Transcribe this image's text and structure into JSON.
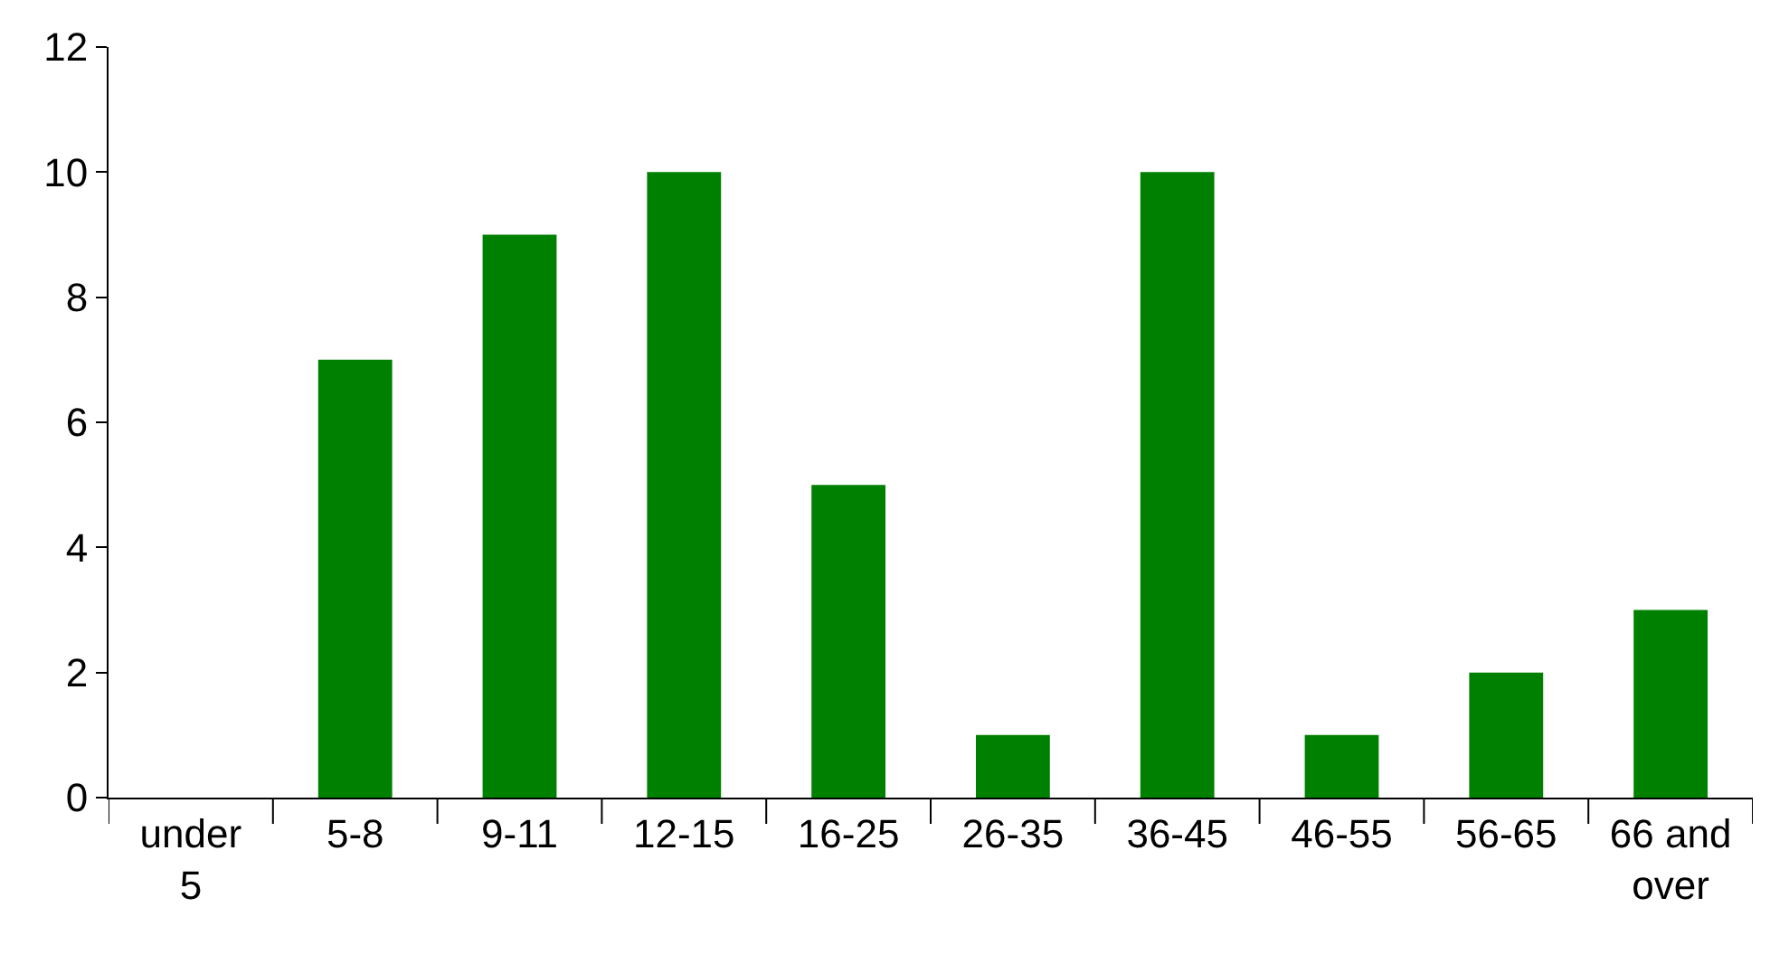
{
  "chart_data": {
    "type": "bar",
    "categories": [
      "under 5",
      "5-8",
      "9-11",
      "12-15",
      "16-25",
      "26-35",
      "36-45",
      "46-55",
      "56-65",
      "66 and over"
    ],
    "values": [
      0,
      7,
      9,
      10,
      5,
      1,
      10,
      1,
      2,
      3
    ],
    "color": "#008000",
    "ylim": [
      0,
      12
    ],
    "yticks": [
      0,
      2,
      4,
      6,
      8,
      10,
      12
    ],
    "grid": false
  }
}
